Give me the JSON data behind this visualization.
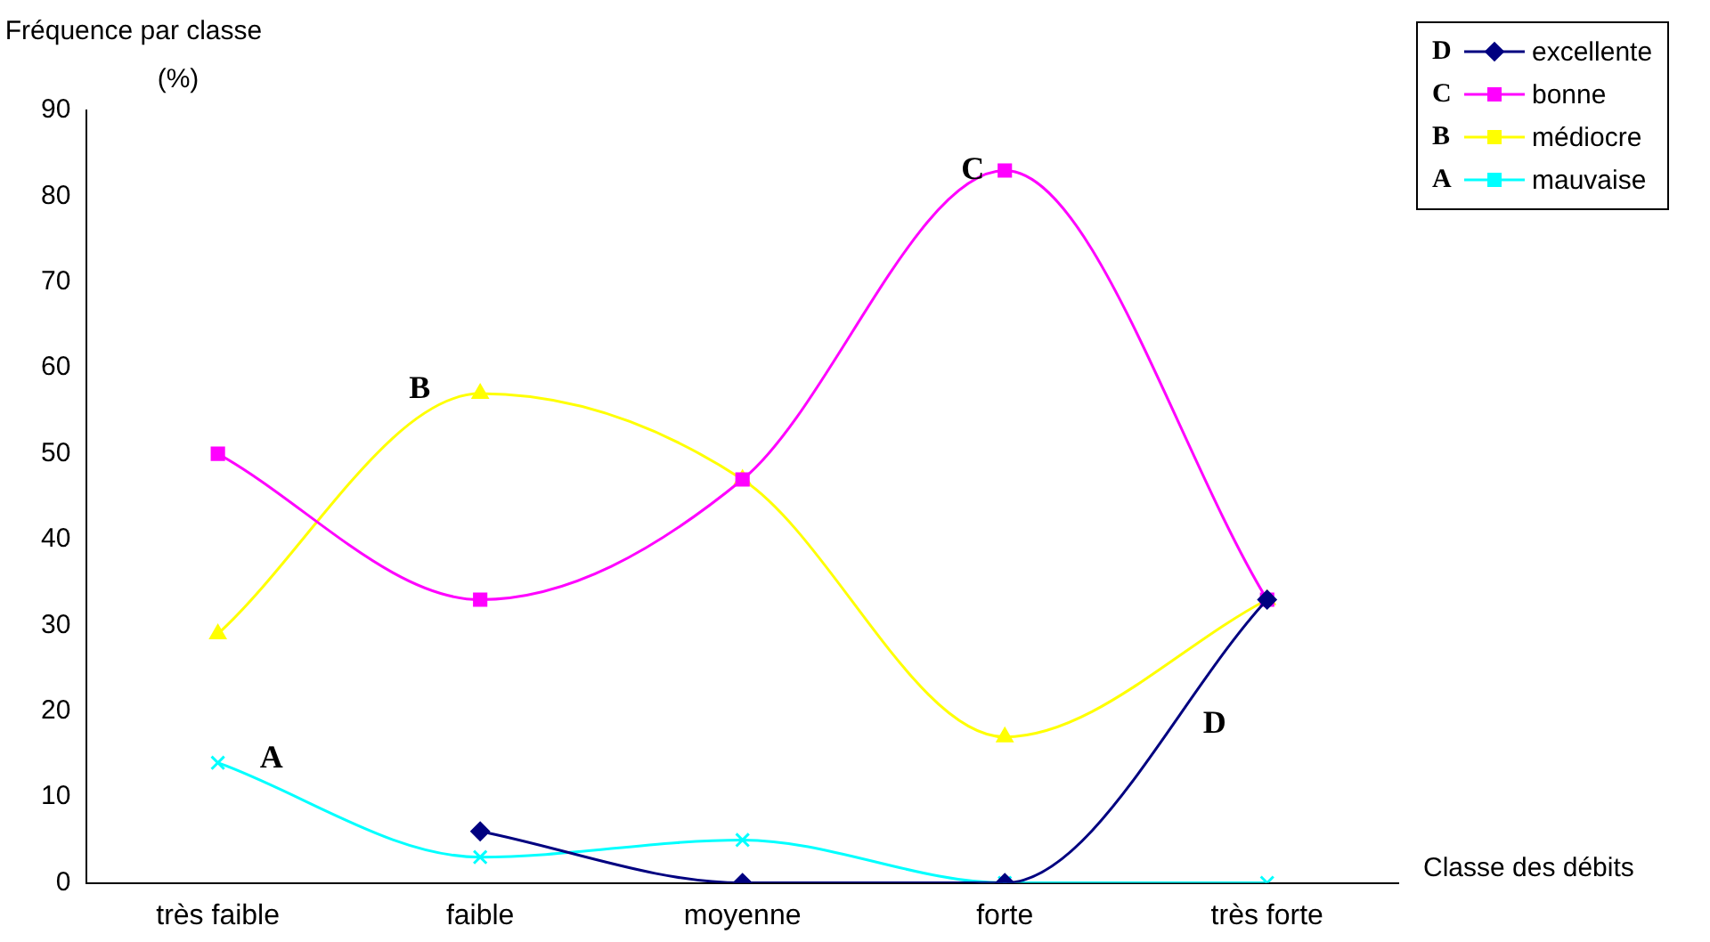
{
  "chart_data": {
    "type": "line",
    "ylabel": "Fréquence par classe\n(%)",
    "xlabel": "Classe des débits",
    "categories": [
      "très faible",
      "faible",
      "moyenne",
      "forte",
      "très forte"
    ],
    "series": [
      {
        "name": "excellente",
        "color": "#000080",
        "marker": "diamond",
        "values": [
          null,
          6,
          0,
          0,
          33
        ]
      },
      {
        "name": "bonne",
        "color": "#ff00ff",
        "marker": "square",
        "values": [
          50,
          33,
          47,
          83,
          33
        ]
      },
      {
        "name": "médiocre",
        "color": "#ffff00",
        "marker": "triangle",
        "values": [
          29,
          57,
          47,
          17,
          33
        ]
      },
      {
        "name": "mauvaise",
        "color": "#00ffff",
        "marker": "cross",
        "values": [
          14,
          3,
          5,
          0,
          0
        ]
      }
    ],
    "annotations": [
      "D",
      {
        "text": "C",
        "x": "forte",
        "y": 83
      },
      {
        "text": "B",
        "x": "faible",
        "y": 57
      },
      {
        "text": "A",
        "x": "très faible",
        "y": 13
      }
    ],
    "ylim": [
      0,
      90
    ],
    "yticks": [
      0,
      10,
      20,
      30,
      40,
      50,
      60,
      70,
      80,
      90
    ],
    "grid": false,
    "legend": "top right"
  }
}
